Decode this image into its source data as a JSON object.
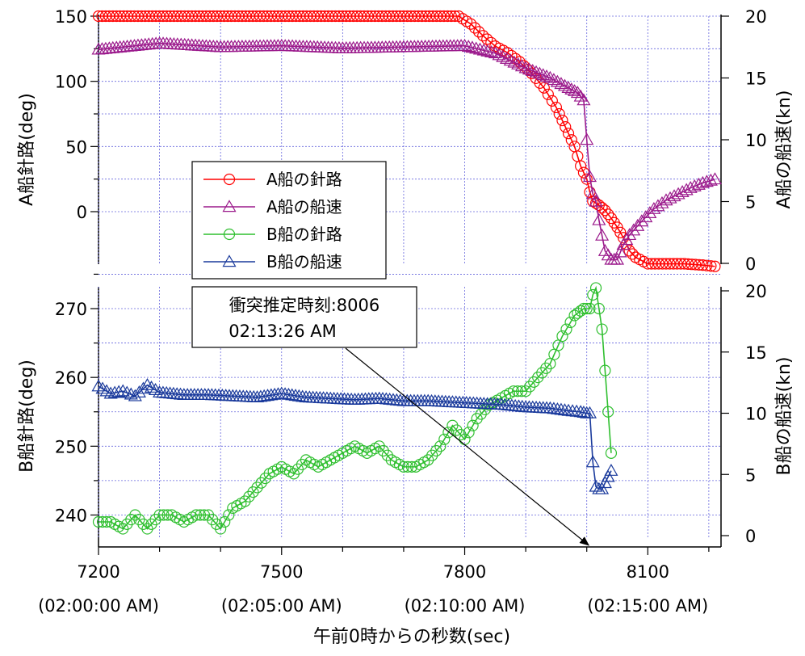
{
  "chart_data": [
    {
      "type": "line",
      "panel": "top",
      "ylabel_left": "A船針路(deg)",
      "ylabel_right": "A船の船速(kn)",
      "ylim_left": [
        -40,
        150
      ],
      "ylim_right": [
        0,
        20
      ],
      "yticks_left": [
        "150",
        "100",
        "50",
        "0"
      ],
      "yticks_right": [
        "20",
        "15",
        "10",
        "5",
        "0"
      ],
      "grid": true,
      "series": [
        {
          "name": "A船の針路",
          "axis": "left",
          "marker": "circle",
          "color": "#ff0000",
          "x": [
            7200,
            7300,
            7400,
            7500,
            7600,
            7700,
            7790,
            7810,
            7830,
            7850,
            7870,
            7890,
            7910,
            7930,
            7950,
            7965,
            7980,
            7990,
            8000,
            8005,
            8010,
            8020,
            8030,
            8040,
            8050,
            8060,
            8070,
            8080,
            8100,
            8130,
            8160,
            8190,
            8210
          ],
          "y": [
            150,
            150,
            150,
            150,
            150,
            150,
            150,
            144,
            135,
            127,
            122,
            115,
            106,
            95,
            80,
            65,
            50,
            35,
            25,
            15,
            8,
            5,
            1,
            -5,
            -12,
            -20,
            -30,
            -35,
            -40,
            -40,
            -40,
            -41,
            -42
          ]
        },
        {
          "name": "A船の船速",
          "axis": "right",
          "marker": "triangle",
          "color": "#9b1a8c",
          "x": [
            7200,
            7300,
            7400,
            7500,
            7600,
            7700,
            7800,
            7850,
            7900,
            7940,
            7970,
            7985,
            7995,
            8000,
            8005,
            8010,
            8015,
            8020,
            8030,
            8040,
            8050,
            8060,
            8070,
            8090,
            8110,
            8130,
            8150,
            8170,
            8190,
            8210
          ],
          "y": [
            17.3,
            17.8,
            17.5,
            17.6,
            17.4,
            17.5,
            17.6,
            17.0,
            15.8,
            15.0,
            14.2,
            13.8,
            13.2,
            10.0,
            7.0,
            5.6,
            5.0,
            3.5,
            1.0,
            0.3,
            0.3,
            1.5,
            2.3,
            3.4,
            4.4,
            5.1,
            5.6,
            6.1,
            6.5,
            6.8
          ]
        }
      ]
    },
    {
      "type": "line",
      "panel": "bottom",
      "xlabel": "午前0時からの秒数(sec)",
      "ylabel_left": "B船針路(deg)",
      "ylabel_right": "B船の船速(kn)",
      "xlim": [
        7200,
        8220
      ],
      "ylim_left": [
        237,
        280
      ],
      "ylim_right": [
        -0.4,
        20.4
      ],
      "xticks": [
        {
          "value": 7200,
          "label": "7200",
          "sub": "(02:00:00 AM)"
        },
        {
          "value": 7500,
          "label": "7500",
          "sub": "(02:05:00 AM)"
        },
        {
          "value": 7800,
          "label": "7800",
          "sub": "(02:10:00 AM)"
        },
        {
          "value": 8100,
          "label": "8100",
          "sub": "(02:15:00 AM)"
        }
      ],
      "yticks_left": [
        "270",
        "260",
        "250",
        "240"
      ],
      "yticks_right": [
        "20",
        "15",
        "10",
        "5",
        "0"
      ],
      "grid": true,
      "series": [
        {
          "name": "B船の針路",
          "axis": "left",
          "marker": "circle",
          "color": "#2fbf2f",
          "x": [
            7200,
            7220,
            7240,
            7260,
            7280,
            7300,
            7320,
            7340,
            7360,
            7380,
            7400,
            7420,
            7440,
            7460,
            7480,
            7500,
            7520,
            7540,
            7560,
            7580,
            7600,
            7620,
            7640,
            7660,
            7680,
            7700,
            7720,
            7740,
            7760,
            7780,
            7800,
            7820,
            7840,
            7860,
            7880,
            7900,
            7920,
            7940,
            7960,
            7980,
            7995,
            8005,
            8010,
            8015,
            8020,
            8025,
            8040
          ],
          "y": [
            239,
            239,
            238,
            240,
            238,
            240,
            240,
            239,
            240,
            240,
            238,
            241,
            242,
            244,
            246,
            247,
            246,
            248,
            247,
            248,
            249,
            250,
            249,
            250,
            248,
            247,
            247,
            248,
            250,
            253,
            251,
            254,
            256,
            257,
            258,
            258,
            260,
            262,
            266,
            269,
            270,
            270,
            272,
            273,
            270,
            267,
            249
          ]
        },
        {
          "name": "B船の船速",
          "axis": "right",
          "marker": "triangle",
          "color": "#1a3a9c",
          "x": [
            7200,
            7220,
            7240,
            7260,
            7280,
            7300,
            7340,
            7380,
            7420,
            7460,
            7500,
            7540,
            7580,
            7620,
            7660,
            7700,
            7740,
            7780,
            7820,
            7860,
            7900,
            7940,
            7970,
            7990,
            8000,
            8005,
            8010,
            8015,
            8020,
            8025,
            8035,
            8040
          ],
          "y": [
            12.2,
            11.6,
            11.8,
            11.4,
            12.3,
            11.7,
            11.5,
            11.5,
            11.4,
            11.3,
            11.6,
            11.3,
            11.2,
            11.1,
            11.2,
            11.0,
            11.0,
            10.9,
            10.8,
            10.7,
            10.5,
            10.4,
            10.2,
            10.1,
            10.0,
            10.0,
            6.0,
            4.0,
            3.8,
            3.8,
            4.8,
            5.3
          ]
        }
      ],
      "annotation": {
        "line1": "衝突推定時刻:8006",
        "line2": "02:13:26 AM",
        "x": 8006
      }
    }
  ]
}
